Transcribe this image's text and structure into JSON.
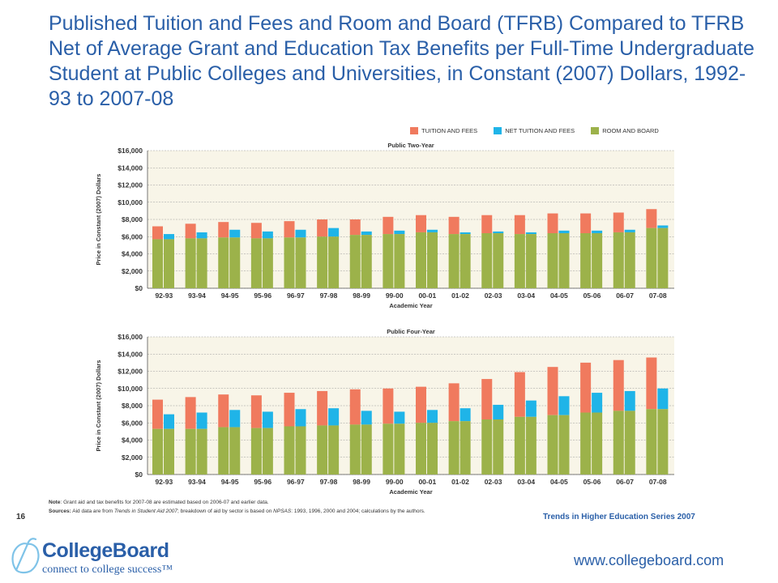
{
  "slide": {
    "title": "Published Tuition and Fees and Room and Board (TFRB) Compared to TFRB Net of Average Grant and Education Tax Benefits per Full-Time Undergraduate Student at Public Colleges and Universities, in Constant (2007) Dollars, 1992-93 to 2007-08",
    "page_number": "16",
    "series_label": "Trends in Higher Education Series 2007",
    "website": "www.collegeboard.com",
    "logo_name": "CollegeBoard",
    "logo_tagline": "connect to college success™",
    "note_label": "Note",
    "note_text": ": Grant aid and tax benefits for 2007-08 are estimated based on 2006-07 and earlier data.",
    "sources_label": "Sources:",
    "sources_text_1": " Aid data are from ",
    "sources_italic_1": "Trends in Student Aid 2007",
    "sources_text_2": "; breakdown of aid by sector is based on ",
    "sources_italic_2": "NPSAS",
    "sources_text_3": ": 1993, 1996, 2000 and 2004; calculations by the authors."
  },
  "legend": {
    "tuition": "TUITION AND FEES",
    "net": "NET TUITION AND FEES",
    "room": "ROOM AND BOARD"
  },
  "colors": {
    "tuition": "#f07a5e",
    "net": "#1fb4e8",
    "room": "#9cb24a",
    "plot_bg": "#f8f5e8",
    "title": "#2a5fa8"
  },
  "chart_data": [
    {
      "type": "bar",
      "title": "Public Two-Year",
      "xlabel": "Academic Year",
      "ylabel": "Price in Constant (2007) Dollars",
      "ylim": [
        0,
        16000
      ],
      "yticks": [
        0,
        2000,
        4000,
        6000,
        8000,
        10000,
        12000,
        14000,
        16000
      ],
      "ytick_labels": [
        "$0",
        "$2,000",
        "$4,000",
        "$6,000",
        "$8,000",
        "$10,000",
        "$12,000",
        "$14,000",
        "$16,000"
      ],
      "categories": [
        "92-93",
        "93-94",
        "94-95",
        "95-96",
        "96-97",
        "97-98",
        "98-99",
        "99-00",
        "00-01",
        "01-02",
        "02-03",
        "03-04",
        "04-05",
        "05-06",
        "06-07",
        "07-08"
      ],
      "series": [
        {
          "name": "ROOM AND BOARD",
          "values": [
            5700,
            5800,
            5900,
            5800,
            5900,
            6000,
            6200,
            6300,
            6500,
            6300,
            6400,
            6300,
            6400,
            6400,
            6500,
            7000
          ]
        },
        {
          "name": "TUITION AND FEES",
          "values": [
            7200,
            7500,
            7700,
            7600,
            7800,
            8000,
            8000,
            8300,
            8500,
            8300,
            8500,
            8500,
            8700,
            8700,
            8800,
            9200
          ]
        },
        {
          "name": "NET TUITION AND FEES",
          "values": [
            6300,
            6500,
            6800,
            6600,
            6800,
            7000,
            6600,
            6700,
            6800,
            6500,
            6600,
            6500,
            6700,
            6700,
            6800,
            7300
          ]
        }
      ]
    },
    {
      "type": "bar",
      "title": "Public Four-Year",
      "xlabel": "Academic Year",
      "ylabel": "Price in Constant (2007) Dollars",
      "ylim": [
        0,
        16000
      ],
      "yticks": [
        0,
        2000,
        4000,
        6000,
        8000,
        10000,
        12000,
        14000,
        16000
      ],
      "ytick_labels": [
        "$0",
        "$2,000",
        "$4,000",
        "$6,000",
        "$8,000",
        "$10,000",
        "$12,000",
        "$14,000",
        "$16,000"
      ],
      "categories": [
        "92-93",
        "93-94",
        "94-95",
        "95-96",
        "96-97",
        "97-98",
        "98-99",
        "99-00",
        "00-01",
        "01-02",
        "02-03",
        "03-04",
        "04-05",
        "05-06",
        "06-07",
        "07-08"
      ],
      "series": [
        {
          "name": "ROOM AND BOARD",
          "values": [
            5300,
            5300,
            5500,
            5400,
            5600,
            5700,
            5800,
            5900,
            6000,
            6200,
            6400,
            6700,
            6900,
            7200,
            7400,
            7600
          ]
        },
        {
          "name": "TUITION AND FEES",
          "values": [
            8700,
            9000,
            9300,
            9200,
            9500,
            9700,
            9900,
            10000,
            10200,
            10600,
            11100,
            11900,
            12500,
            13000,
            13300,
            13600
          ]
        },
        {
          "name": "NET TUITION AND FEES",
          "values": [
            7000,
            7200,
            7500,
            7300,
            7600,
            7700,
            7400,
            7300,
            7500,
            7700,
            8100,
            8600,
            9100,
            9500,
            9700,
            10000
          ]
        }
      ]
    }
  ]
}
